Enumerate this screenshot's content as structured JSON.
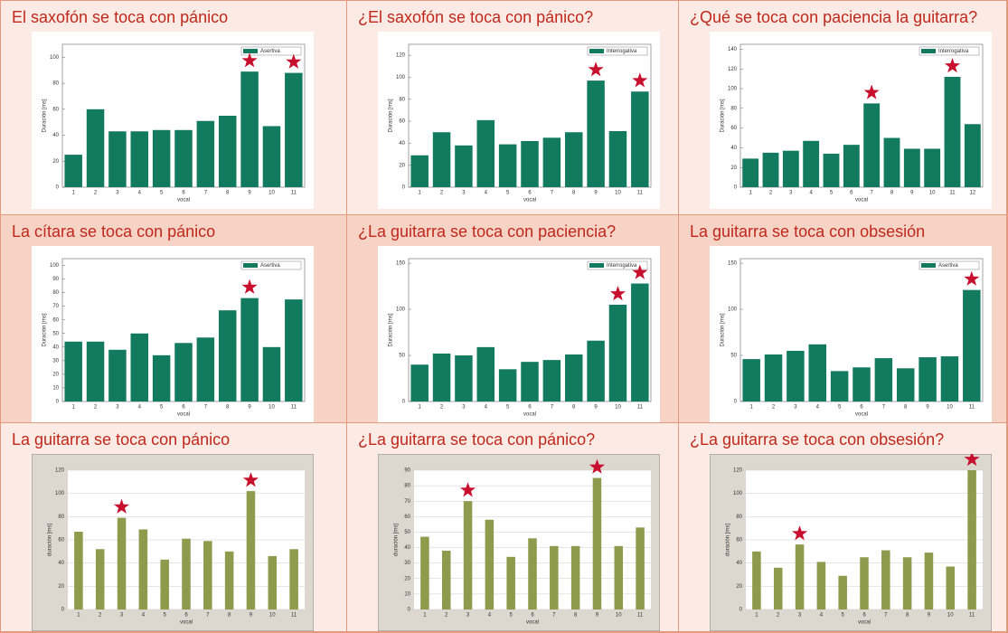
{
  "chart_data": [
    {
      "type": "bar",
      "title": "El saxofón se toca con pánico",
      "ylabel": "Duración [ms]",
      "xlabel": "vocal",
      "categories": [
        "1",
        "2",
        "3",
        "4",
        "5",
        "6",
        "7",
        "8",
        "9",
        "10",
        "11"
      ],
      "series": [
        {
          "name": "Asertiva",
          "color": "#127a5e",
          "values": [
            25,
            60,
            43,
            43,
            44,
            44,
            51,
            55,
            89,
            47,
            88
          ]
        }
      ],
      "ylim": [
        0,
        110
      ],
      "yticks": [
        0,
        20,
        40,
        60,
        80,
        100
      ],
      "highlight": [
        8,
        10
      ],
      "background": "#ffffff"
    },
    {
      "type": "bar",
      "title": "¿El saxofón se toca con pánico?",
      "ylabel": "Duración [ms]",
      "xlabel": "vocal",
      "categories": [
        "1",
        "2",
        "3",
        "4",
        "5",
        "6",
        "7",
        "8",
        "9",
        "10",
        "11"
      ],
      "series": [
        {
          "name": "Interrogativa",
          "color": "#127a5e",
          "values": [
            29,
            50,
            38,
            61,
            39,
            42,
            45,
            50,
            97,
            51,
            87
          ]
        }
      ],
      "ylim": [
        0,
        130
      ],
      "yticks": [
        0,
        20,
        40,
        60,
        80,
        100,
        120
      ],
      "highlight": [
        8,
        10
      ],
      "background": "#ffffff"
    },
    {
      "type": "bar",
      "title": "¿Qué se toca con paciencia la guitarra?",
      "ylabel": "Duración [ms]",
      "xlabel": "vocal",
      "categories": [
        "1",
        "2",
        "3",
        "4",
        "5",
        "6",
        "7",
        "8",
        "9",
        "10",
        "11",
        "12"
      ],
      "series": [
        {
          "name": "Interrogativa",
          "color": "#127a5e",
          "values": [
            29,
            35,
            37,
            47,
            34,
            43,
            85,
            50,
            39,
            39,
            112,
            64
          ]
        }
      ],
      "ylim": [
        0,
        145
      ],
      "yticks": [
        0,
        20,
        40,
        60,
        80,
        100,
        120,
        140
      ],
      "highlight": [
        6,
        10
      ],
      "background": "#ffffff"
    },
    {
      "type": "bar",
      "title": "La cítara se toca con pánico",
      "ylabel": "Duración [ms]",
      "xlabel": "vocal",
      "categories": [
        "1",
        "2",
        "3",
        "4",
        "5",
        "6",
        "7",
        "8",
        "9",
        "10",
        "11"
      ],
      "series": [
        {
          "name": "Asertiva",
          "color": "#127a5e",
          "values": [
            44,
            44,
            38,
            50,
            34,
            43,
            47,
            67,
            76,
            40,
            75
          ]
        }
      ],
      "ylim": [
        0,
        105
      ],
      "yticks": [
        0,
        10,
        20,
        30,
        40,
        50,
        60,
        70,
        80,
        90,
        100
      ],
      "highlight": [
        8
      ],
      "background": "#ffffff"
    },
    {
      "type": "bar",
      "title": "¿La guitarra se toca con paciencia?",
      "ylabel": "Duración [ms]",
      "xlabel": "vocal",
      "categories": [
        "1",
        "2",
        "3",
        "4",
        "5",
        "6",
        "7",
        "8",
        "9",
        "10",
        "11"
      ],
      "series": [
        {
          "name": "Interrogativa",
          "color": "#127a5e",
          "values": [
            40,
            52,
            50,
            59,
            35,
            43,
            45,
            51,
            66,
            105,
            128
          ]
        }
      ],
      "ylim": [
        0,
        155
      ],
      "yticks": [
        0,
        50,
        100,
        150
      ],
      "highlight": [
        9,
        10
      ],
      "background": "#ffffff"
    },
    {
      "type": "bar",
      "title": "La guitarra se toca con obsesión",
      "ylabel": "Duración [ms]",
      "xlabel": "vocal",
      "categories": [
        "1",
        "2",
        "3",
        "4",
        "5",
        "6",
        "7",
        "8",
        "9",
        "10",
        "11"
      ],
      "series": [
        {
          "name": "Asertiva",
          "color": "#127a5e",
          "values": [
            46,
            51,
            55,
            62,
            33,
            37,
            47,
            36,
            48,
            49,
            121
          ]
        }
      ],
      "ylim": [
        0,
        155
      ],
      "yticks": [
        0,
        50,
        100,
        150
      ],
      "highlight": [
        10
      ],
      "background": "#ffffff"
    },
    {
      "type": "bar",
      "title": "La guitarra se toca con pánico",
      "ylabel": "duración [ms]",
      "xlabel": "vocal",
      "categories": [
        "1",
        "2",
        "3",
        "4",
        "5",
        "6",
        "7",
        "8",
        "9",
        "10",
        "11"
      ],
      "values": [
        67,
        52,
        79,
        69,
        43,
        61,
        59,
        50,
        102,
        46,
        52
      ],
      "color": "#8e9a4c",
      "ylim": [
        0,
        120
      ],
      "yticks": [
        0,
        20,
        40,
        60,
        80,
        100,
        120
      ],
      "highlight": [
        2,
        8
      ],
      "background": "#dcd8cf"
    },
    {
      "type": "bar",
      "title": "¿La guitarra se toca con pánico?",
      "ylabel": "duración [ms]",
      "xlabel": "vocal",
      "categories": [
        "1",
        "2",
        "3",
        "4",
        "5",
        "6",
        "7",
        "8",
        "9",
        "10",
        "11"
      ],
      "values": [
        47,
        38,
        70,
        58,
        34,
        46,
        41,
        41,
        85,
        41,
        53
      ],
      "color": "#8e9a4c",
      "ylim": [
        0,
        90
      ],
      "yticks": [
        0,
        10,
        20,
        30,
        40,
        50,
        60,
        70,
        80,
        90
      ],
      "highlight": [
        2,
        8
      ],
      "background": "#dcd8cf"
    },
    {
      "type": "bar",
      "title": "¿La guitarra se toca con obsesión?",
      "ylabel": "duración [ms]",
      "xlabel": "vocal",
      "categories": [
        "1",
        "2",
        "3",
        "4",
        "5",
        "6",
        "7",
        "8",
        "9",
        "10",
        "11"
      ],
      "values": [
        50,
        36,
        56,
        41,
        29,
        45,
        51,
        45,
        49,
        37,
        120
      ],
      "color": "#8e9a4c",
      "ylim": [
        0,
        120
      ],
      "yticks": [
        0,
        20,
        40,
        60,
        80,
        100,
        120
      ],
      "highlight": [
        2,
        10
      ],
      "background": "#dcd8cf"
    }
  ]
}
